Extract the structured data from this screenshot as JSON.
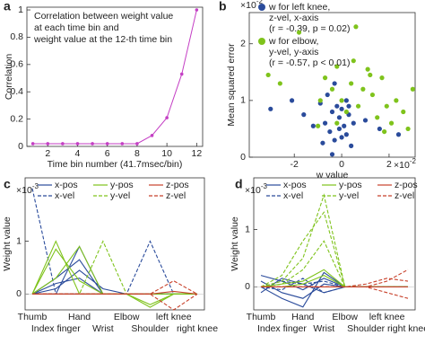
{
  "chart_data": [
    {
      "type": "line",
      "panel_label": "a",
      "xlabel": "Time bin number (41.7msec/bin)",
      "ylabel": "Correlation",
      "annotation": [
        "Correlation between weight value",
        "at each time bin and",
        "weight value at the 12-th time bin"
      ],
      "x": [
        1,
        2,
        3,
        4,
        5,
        6,
        7,
        8,
        9,
        10,
        11,
        12
      ],
      "values": [
        0.02,
        0.02,
        0.02,
        0.02,
        0.02,
        0.02,
        0.02,
        0.02,
        0.08,
        0.21,
        0.53,
        1
      ],
      "color": "#c43fc4",
      "xlim": [
        0.6,
        12.4
      ],
      "xticks": [
        2,
        4,
        6,
        8,
        10,
        12
      ],
      "ylim": [
        0,
        1.02
      ],
      "yticks": [
        0,
        0.2,
        0.4,
        0.6,
        0.8,
        1
      ]
    },
    {
      "type": "scatter",
      "panel_label": "b",
      "xlabel": "w value",
      "ylabel": "Mean squared error",
      "x_scale_base": "×10",
      "x_scale_power": "-2",
      "y_scale_base": "×10",
      "y_scale_power": "-2",
      "xlim": [
        -3.9,
        3.1
      ],
      "xticks": [
        -2,
        0,
        2
      ],
      "ylim": [
        0,
        2.55
      ],
      "yticks": [
        0,
        1,
        2
      ],
      "series": [
        {
          "name": "w for left knee,",
          "details": [
            "z-vel, x-axis",
            "(r = -0.39, p = 0.02)"
          ],
          "color": "#2a4b9b",
          "x": [
            -3.0,
            -2.1,
            -1.6,
            -1.2,
            -0.9,
            -0.7,
            -0.5,
            -0.4,
            -0.3,
            -0.2,
            -0.1,
            0,
            0.1,
            0.2,
            0.3,
            0.4,
            0.5,
            -0.6,
            -0.3,
            0,
            0.2,
            -0.8,
            -0.1,
            0.3,
            1.0,
            1.6,
            2.4,
            -0.4
          ],
          "values": [
            0.85,
            1.0,
            0.75,
            0.55,
            0.95,
            0.6,
            0.45,
            0.8,
            0.3,
            0.9,
            0.7,
            0.85,
            0.55,
            0.4,
            0.75,
            0.2,
            0.6,
            1.1,
            1.3,
            0.35,
            1.0,
            0.25,
            0.5,
            0.9,
            0.65,
            0.5,
            0.4,
            0.05
          ]
        },
        {
          "name": "w for elbow,",
          "details": [
            "y-vel, y-axis",
            "(r = -0.57, p < 0.01)"
          ],
          "color": "#7fc31c",
          "x": [
            -3.1,
            -2.6,
            -1.8,
            -0.9,
            -0.7,
            -0.4,
            -0.2,
            0,
            0.2,
            0.4,
            0.5,
            0.7,
            0.9,
            1.1,
            1.3,
            1.5,
            1.7,
            1.9,
            2.1,
            2.3,
            2.6,
            2.8,
            3.0,
            -0.2,
            0.6,
            1.2,
            1.8,
            -1.0
          ],
          "values": [
            1.45,
            1.3,
            2.2,
            1.0,
            1.4,
            1.2,
            1.6,
            1.0,
            0.8,
            1.3,
            1.7,
            0.9,
            1.2,
            1.55,
            1.1,
            0.7,
            1.4,
            0.9,
            0.6,
            1.0,
            0.8,
            0.5,
            1.2,
            0.6,
            2.3,
            1.45,
            0.45,
            0.55
          ]
        }
      ]
    },
    {
      "type": "line",
      "panel_label": "c",
      "ylabel": "Weight value",
      "y_scale_base": "×10",
      "y_scale_power": "-3",
      "categories": [
        "Thumb",
        "Index finger",
        "Hand",
        "Wrist",
        "Elbow",
        "Shoulder",
        "left knee",
        "right knee"
      ],
      "ylim": [
        -0.3,
        2.2
      ],
      "yticks": [
        0,
        1
      ],
      "series": [
        {
          "name": "x-pos",
          "color": "#2a4b9b",
          "dash": false,
          "lines": [
            [
              0,
              0,
              0.9,
              0,
              0,
              0,
              0,
              0
            ],
            [
              0,
              0.3,
              0.65,
              0,
              0,
              0,
              0,
              0
            ],
            [
              0,
              0.1,
              0.45,
              0.1,
              0,
              0,
              0,
              0
            ],
            [
              0,
              0.2,
              0.3,
              0,
              0,
              0,
              0,
              0
            ]
          ]
        },
        {
          "name": "x-vel",
          "color": "#2a4b9b",
          "dash": true,
          "lines": [
            [
              2.0,
              0,
              0,
              0,
              0,
              0,
              0,
              0
            ],
            [
              0,
              0,
              0,
              0,
              0,
              1.0,
              0,
              0
            ]
          ]
        },
        {
          "name": "y-pos",
          "color": "#7fc31c",
          "dash": false,
          "lines": [
            [
              0,
              1.0,
              0,
              0,
              0,
              0,
              0,
              0
            ],
            [
              0,
              0.85,
              0.25,
              0,
              0,
              -0.25,
              0,
              0
            ],
            [
              0,
              0.3,
              0.9,
              0,
              0,
              -0.2,
              0,
              0
            ]
          ]
        },
        {
          "name": "y-vel",
          "color": "#7fc31c",
          "dash": true,
          "lines": [
            [
              0,
              0,
              0,
              1.0,
              0,
              0,
              0,
              0
            ]
          ]
        },
        {
          "name": "z-pos",
          "color": "#c8412b",
          "dash": false,
          "lines": [
            [
              0,
              0,
              0,
              0,
              0,
              0,
              0.05,
              0
            ]
          ]
        },
        {
          "name": "z-vel",
          "color": "#c8412b",
          "dash": true,
          "lines": [
            [
              0,
              0,
              0,
              0,
              0,
              0,
              0.25,
              0
            ],
            [
              0,
              0,
              0,
              0,
              0,
              0,
              -0.3,
              0
            ]
          ]
        }
      ]
    },
    {
      "type": "line",
      "panel_label": "d",
      "ylabel": "Weight value",
      "y_scale_base": "×10",
      "y_scale_power": "-3",
      "categories": [
        "Thumb",
        "Index finger",
        "Hand",
        "Wrist",
        "Elbow",
        "Shoulder",
        "left knee",
        "right knee"
      ],
      "ylim": [
        -0.4,
        1.9
      ],
      "yticks": [
        0,
        1
      ],
      "series": [
        {
          "name": "x-pos",
          "color": "#2a4b9b",
          "dash": false,
          "lines": [
            [
              0.2,
              0.1,
              -0.05,
              0.15,
              0,
              0,
              0,
              0
            ],
            [
              0.1,
              -0.1,
              -0.2,
              0.05,
              0,
              0,
              0,
              0
            ],
            [
              0,
              -0.2,
              -0.35,
              0.25,
              0,
              0,
              0,
              0
            ],
            [
              -0.1,
              0.15,
              0.05,
              -0.1,
              0,
              0,
              0,
              0
            ]
          ]
        },
        {
          "name": "x-vel",
          "color": "#2a4b9b",
          "dash": true,
          "lines": [
            [
              0,
              0.1,
              0.05,
              0.1,
              0,
              0,
              0,
              0
            ],
            [
              0,
              -0.05,
              0.15,
              -0.1,
              0,
              0,
              0,
              0
            ]
          ]
        },
        {
          "name": "y-pos",
          "color": "#7fc31c",
          "dash": false,
          "lines": [
            [
              0,
              0.05,
              0.1,
              0.3,
              0,
              0,
              0,
              0
            ],
            [
              0,
              0,
              0.05,
              0.2,
              0,
              0,
              0,
              0
            ]
          ]
        },
        {
          "name": "y-vel",
          "color": "#7fc31c",
          "dash": true,
          "lines": [
            [
              0,
              0.1,
              0.5,
              1.6,
              0,
              0,
              0,
              0
            ],
            [
              0,
              0.2,
              0.8,
              1.3,
              0,
              0,
              0,
              0
            ],
            [
              0,
              0.05,
              0.3,
              0.8,
              0,
              0,
              0,
              0
            ]
          ]
        },
        {
          "name": "z-pos",
          "color": "#c8412b",
          "dash": false,
          "lines": [
            [
              0,
              0,
              0,
              0,
              0,
              0,
              0,
              0
            ]
          ]
        },
        {
          "name": "z-vel",
          "color": "#c8412b",
          "dash": true,
          "lines": [
            [
              0,
              0,
              0,
              0,
              0,
              0,
              0.1,
              0.3
            ],
            [
              0,
              0,
              0,
              0,
              0,
              0,
              -0.1,
              -0.2
            ],
            [
              0,
              0,
              0,
              0,
              0,
              0.05,
              0.15,
              0.1
            ]
          ]
        }
      ]
    }
  ]
}
